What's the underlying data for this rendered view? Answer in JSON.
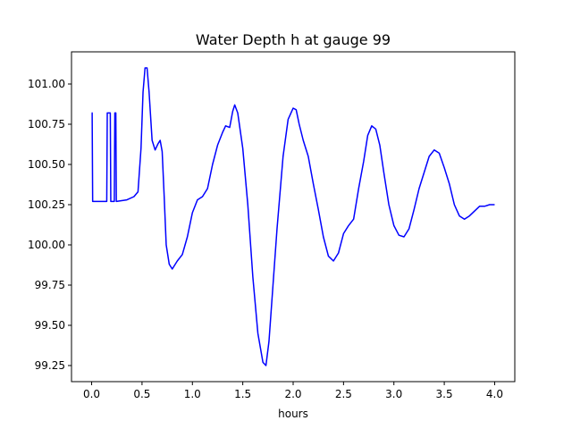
{
  "chart_data": {
    "type": "line",
    "title": "Water Depth h at gauge 99",
    "xlabel": "hours",
    "ylabel": "",
    "xlim": [
      -0.2,
      4.2
    ],
    "ylim": [
      99.15,
      101.2
    ],
    "xticks": [
      0.0,
      0.5,
      1.0,
      1.5,
      2.0,
      2.5,
      3.0,
      3.5,
      4.0
    ],
    "xtick_labels": [
      "0.0",
      "0.5",
      "1.0",
      "1.5",
      "2.0",
      "2.5",
      "3.0",
      "3.5",
      "4.0"
    ],
    "yticks": [
      99.25,
      99.5,
      99.75,
      100.0,
      100.25,
      100.5,
      100.75,
      101.0
    ],
    "ytick_labels": [
      "99.25",
      "99.50",
      "99.75",
      "100.00",
      "100.25",
      "100.50",
      "100.75",
      "101.00"
    ],
    "grid": false,
    "series": [
      {
        "color": "#0000ff",
        "points": [
          [
            0.0,
            100.82
          ],
          [
            0.005,
            100.82
          ],
          [
            0.01,
            100.27
          ],
          [
            0.15,
            100.27
          ],
          [
            0.155,
            100.82
          ],
          [
            0.185,
            100.82
          ],
          [
            0.19,
            100.27
          ],
          [
            0.225,
            100.27
          ],
          [
            0.23,
            100.82
          ],
          [
            0.24,
            100.82
          ],
          [
            0.245,
            100.27
          ],
          [
            0.35,
            100.28
          ],
          [
            0.42,
            100.3
          ],
          [
            0.46,
            100.33
          ],
          [
            0.49,
            100.6
          ],
          [
            0.51,
            100.95
          ],
          [
            0.53,
            101.1
          ],
          [
            0.55,
            101.1
          ],
          [
            0.57,
            100.95
          ],
          [
            0.6,
            100.65
          ],
          [
            0.63,
            100.59
          ],
          [
            0.66,
            100.63
          ],
          [
            0.68,
            100.65
          ],
          [
            0.7,
            100.58
          ],
          [
            0.72,
            100.3
          ],
          [
            0.74,
            100.0
          ],
          [
            0.77,
            99.88
          ],
          [
            0.8,
            99.85
          ],
          [
            0.85,
            99.9
          ],
          [
            0.9,
            99.94
          ],
          [
            0.95,
            100.05
          ],
          [
            1.0,
            100.2
          ],
          [
            1.05,
            100.28
          ],
          [
            1.1,
            100.3
          ],
          [
            1.15,
            100.35
          ],
          [
            1.2,
            100.5
          ],
          [
            1.25,
            100.62
          ],
          [
            1.3,
            100.7
          ],
          [
            1.33,
            100.74
          ],
          [
            1.37,
            100.73
          ],
          [
            1.4,
            100.83
          ],
          [
            1.42,
            100.87
          ],
          [
            1.45,
            100.82
          ],
          [
            1.5,
            100.6
          ],
          [
            1.55,
            100.25
          ],
          [
            1.6,
            99.8
          ],
          [
            1.65,
            99.45
          ],
          [
            1.7,
            99.27
          ],
          [
            1.73,
            99.25
          ],
          [
            1.76,
            99.4
          ],
          [
            1.8,
            99.75
          ],
          [
            1.84,
            100.1
          ],
          [
            1.9,
            100.55
          ],
          [
            1.95,
            100.78
          ],
          [
            2.0,
            100.85
          ],
          [
            2.03,
            100.84
          ],
          [
            2.06,
            100.75
          ],
          [
            2.1,
            100.65
          ],
          [
            2.15,
            100.55
          ],
          [
            2.2,
            100.38
          ],
          [
            2.25,
            100.22
          ],
          [
            2.3,
            100.05
          ],
          [
            2.35,
            99.93
          ],
          [
            2.4,
            99.9
          ],
          [
            2.45,
            99.95
          ],
          [
            2.5,
            100.07
          ],
          [
            2.55,
            100.12
          ],
          [
            2.6,
            100.16
          ],
          [
            2.65,
            100.35
          ],
          [
            2.7,
            100.52
          ],
          [
            2.74,
            100.68
          ],
          [
            2.78,
            100.74
          ],
          [
            2.82,
            100.72
          ],
          [
            2.86,
            100.62
          ],
          [
            2.9,
            100.45
          ],
          [
            2.95,
            100.25
          ],
          [
            3.0,
            100.12
          ],
          [
            3.05,
            100.06
          ],
          [
            3.1,
            100.05
          ],
          [
            3.15,
            100.1
          ],
          [
            3.2,
            100.22
          ],
          [
            3.25,
            100.35
          ],
          [
            3.3,
            100.45
          ],
          [
            3.35,
            100.55
          ],
          [
            3.4,
            100.59
          ],
          [
            3.45,
            100.57
          ],
          [
            3.5,
            100.48
          ],
          [
            3.55,
            100.38
          ],
          [
            3.6,
            100.25
          ],
          [
            3.65,
            100.18
          ],
          [
            3.7,
            100.16
          ],
          [
            3.75,
            100.18
          ],
          [
            3.8,
            100.21
          ],
          [
            3.85,
            100.24
          ],
          [
            3.9,
            100.24
          ],
          [
            3.95,
            100.25
          ],
          [
            4.0,
            100.25
          ]
        ]
      }
    ]
  }
}
